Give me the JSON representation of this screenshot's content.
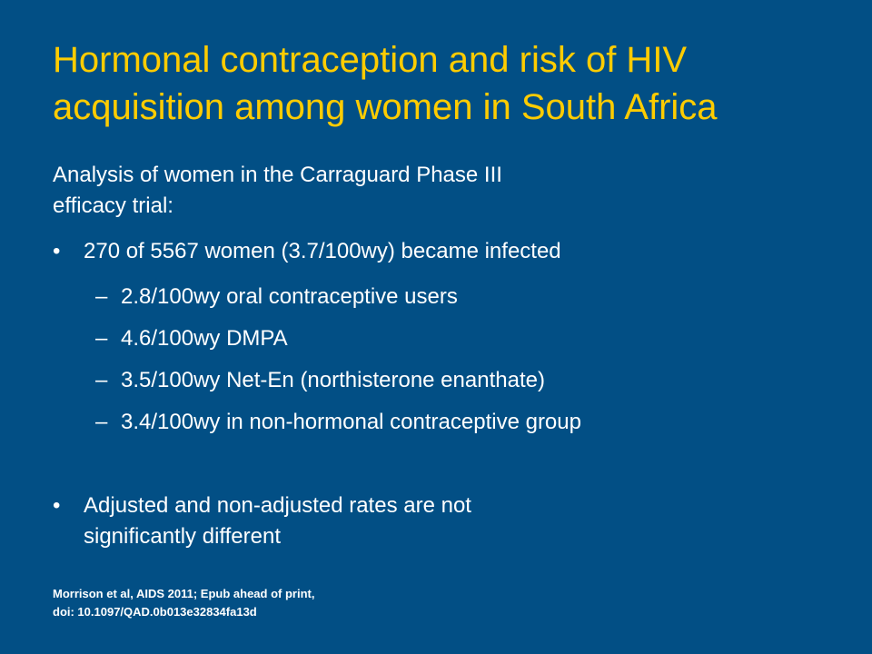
{
  "slide": {
    "background_color": "#024f85",
    "title_color": "#ffcc00",
    "text_color": "#ffffff",
    "title_lines": [
      "Hormonal contraception and risk of HIV",
      "acquisition among women in South Africa"
    ],
    "intro_lines": [
      "Analysis of women in the Carraguard Phase III",
      "efficacy trial:"
    ],
    "bullets": [
      {
        "marker": "•",
        "lines": [
          "270 of 5567 women (3.7/100wy) became infected"
        ],
        "subitems": [
          {
            "dash": "–",
            "text": "2.8/100wy oral contraceptive users"
          },
          {
            "dash": "–",
            "text": "4.6/100wy DMPA"
          },
          {
            "dash": "–",
            "text": "3.5/100wy Net-En (northisterone enanthate)"
          },
          {
            "dash": "–",
            "text": "3.4/100wy in non-hormonal contraceptive group"
          }
        ]
      },
      {
        "marker": "•",
        "lines": [
          "Adjusted and non-adjusted rates are not",
          "significantly different"
        ],
        "subitems": []
      }
    ],
    "citation_lines": [
      "Morrison et al, AIDS 2011; Epub ahead of print,",
      "doi: 10.1097/QAD.0b013e32834fa13d"
    ]
  }
}
